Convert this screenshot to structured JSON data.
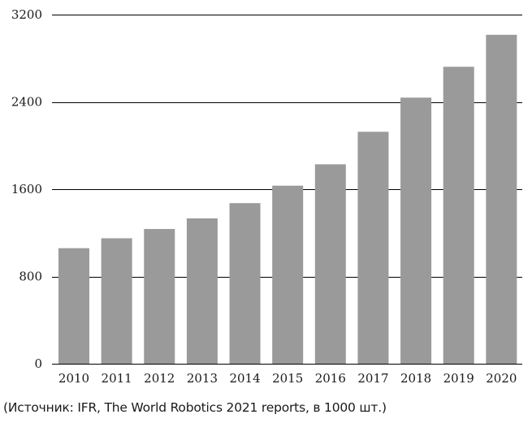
{
  "chart_data": {
    "type": "bar",
    "categories": [
      "2010",
      "2011",
      "2012",
      "2013",
      "2014",
      "2015",
      "2016",
      "2017",
      "2018",
      "2019",
      "2020"
    ],
    "values": [
      1059,
      1150,
      1235,
      1332,
      1472,
      1632,
      1828,
      2126,
      2439,
      2722,
      3015
    ],
    "title": "",
    "xlabel": "",
    "ylabel": "",
    "ylim": [
      0,
      3200
    ],
    "yticks": [
      0,
      800,
      1600,
      2400,
      3200
    ],
    "grid": true,
    "bar_color": "#9a9a9a",
    "grid_color": "#000000"
  },
  "source_note": "(Источник: IFR, The World Robotics 2021 reports, в 1000 шт.)"
}
